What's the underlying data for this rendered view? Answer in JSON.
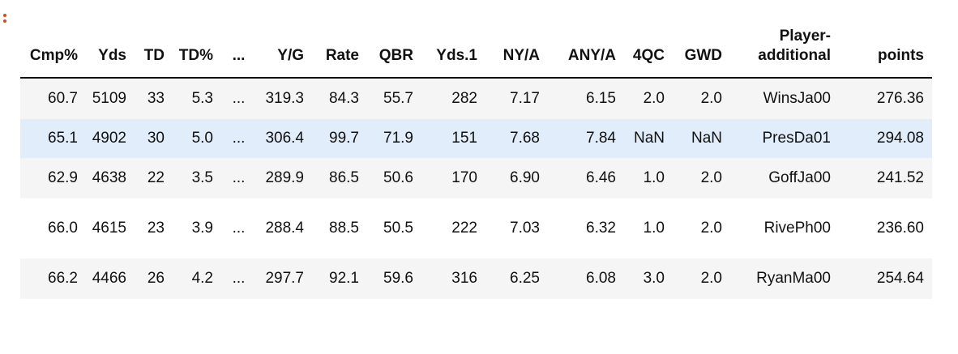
{
  "prompt_marker": ":",
  "columns": [
    "Cmp%",
    "Yds",
    "TD",
    "TD%",
    "...",
    "Y/G",
    "Rate",
    "QBR",
    "Yds.1",
    "NY/A",
    "ANY/A",
    "4QC",
    "GWD",
    "Player-additional",
    "points"
  ],
  "rows": [
    [
      "60.7",
      "5109",
      "33",
      "5.3",
      "...",
      "319.3",
      "84.3",
      "55.7",
      "282",
      "7.17",
      "6.15",
      "2.0",
      "2.0",
      "WinsJa00",
      "276.36"
    ],
    [
      "65.1",
      "4902",
      "30",
      "5.0",
      "...",
      "306.4",
      "99.7",
      "71.9",
      "151",
      "7.68",
      "7.84",
      "NaN",
      "NaN",
      "PresDa01",
      "294.08"
    ],
    [
      "62.9",
      "4638",
      "22",
      "3.5",
      "...",
      "289.9",
      "86.5",
      "50.6",
      "170",
      "6.90",
      "6.46",
      "1.0",
      "2.0",
      "GoffJa00",
      "241.52"
    ],
    [
      "66.0",
      "4615",
      "23",
      "3.9",
      "...",
      "288.4",
      "88.5",
      "50.5",
      "222",
      "7.03",
      "6.32",
      "1.0",
      "2.0",
      "RivePh00",
      "236.60"
    ],
    [
      "66.2",
      "4466",
      "26",
      "4.2",
      "...",
      "297.7",
      "92.1",
      "59.6",
      "316",
      "6.25",
      "6.08",
      "3.0",
      "2.0",
      "RyanMa00",
      "254.64"
    ]
  ],
  "colors": {
    "row_stripe": "#f5f5f5",
    "row_hover": "#e1edfb",
    "header_rule": "#111111",
    "prompt_marker": "#c8521d"
  }
}
